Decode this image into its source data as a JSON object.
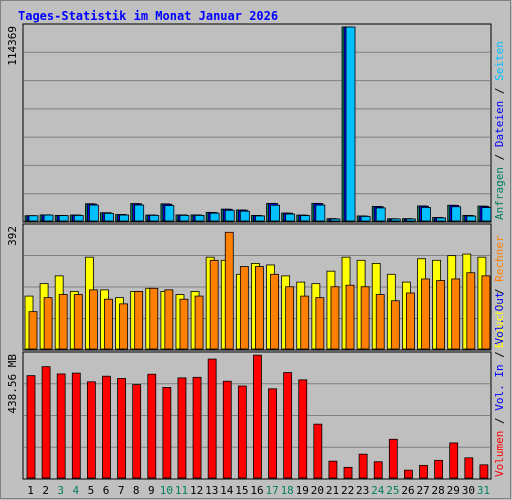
{
  "title": "Tages-Statistik im Monat Januar 2026",
  "colors": {
    "background": "#c0c0c0",
    "plot_bg": "#bfbfbf",
    "grid": "#808080",
    "title": "#0000ff",
    "anfragen": "#007f5f",
    "dateien": "#0000ff",
    "seiten": "#00c0ff",
    "besuche": "#ffff00",
    "rechner": "#ff8000",
    "volumen": "#ff0000",
    "weekday_label": "#000000",
    "weekend_label": "#007f5f",
    "separator": "#000000"
  },
  "chart_data": [
    {
      "type": "bar",
      "panel": "requests",
      "ymax_label": "114369",
      "ylim": [
        0,
        114369
      ],
      "grid": true,
      "categories": [
        "1",
        "2",
        "3",
        "4",
        "5",
        "6",
        "7",
        "8",
        "9",
        "10",
        "11",
        "12",
        "13",
        "14",
        "15",
        "16",
        "17",
        "18",
        "19",
        "20",
        "21",
        "22",
        "23",
        "24",
        "25",
        "26",
        "27",
        "28",
        "29",
        "30",
        "31"
      ],
      "weekend": [
        3,
        4,
        10,
        11,
        17,
        18,
        24,
        25,
        31
      ],
      "legend": [
        {
          "label": "Anfragen",
          "color_key": "anfragen"
        },
        {
          "label": "Dateien",
          "color_key": "dateien"
        },
        {
          "label": "Seiten",
          "color_key": "seiten"
        }
      ],
      "series": [
        {
          "name": "Anfragen",
          "values": [
            3100,
            3600,
            3300,
            3500,
            10200,
            4900,
            3800,
            10300,
            3500,
            10100,
            3600,
            3600,
            5100,
            7000,
            6500,
            3300,
            10400,
            4700,
            3500,
            10400,
            1400,
            114369,
            3000,
            8600,
            1300,
            1400,
            8900,
            2100,
            9300,
            3300,
            8800
          ]
        },
        {
          "name": "Dateien",
          "values": [
            3100,
            3600,
            3300,
            3500,
            10000,
            4800,
            3800,
            10100,
            3500,
            9900,
            3600,
            3500,
            5000,
            6900,
            6400,
            3200,
            10300,
            4600,
            3400,
            10300,
            1300,
            114369,
            2900,
            8400,
            1300,
            1300,
            8700,
            2000,
            9200,
            3200,
            8600
          ]
        },
        {
          "name": "Seiten",
          "values": [
            3100,
            3500,
            3200,
            3300,
            9400,
            4500,
            3500,
            9400,
            3300,
            9100,
            3300,
            3300,
            4600,
            6300,
            5800,
            3000,
            9300,
            4100,
            3200,
            9400,
            1200,
            114369,
            2700,
            7700,
            1200,
            1200,
            8000,
            1800,
            8400,
            2900,
            7900
          ]
        }
      ]
    },
    {
      "type": "bar",
      "panel": "visits",
      "ymax_label": "392",
      "ylim": [
        0,
        392
      ],
      "grid": true,
      "categories": [
        "1",
        "2",
        "3",
        "4",
        "5",
        "6",
        "7",
        "8",
        "9",
        "10",
        "11",
        "12",
        "13",
        "14",
        "15",
        "16",
        "17",
        "18",
        "19",
        "20",
        "21",
        "22",
        "23",
        "24",
        "25",
        "26",
        "27",
        "28",
        "29",
        "30",
        "31"
      ],
      "legend": [
        {
          "label": "Besuche",
          "color_key": "besuche"
        },
        {
          "label": "Rechner",
          "color_key": "rechner"
        }
      ],
      "series": [
        {
          "name": "Besuche",
          "values": [
            170,
            210,
            235,
            185,
            295,
            190,
            165,
            185,
            195,
            185,
            175,
            185,
            295,
            285,
            240,
            275,
            270,
            235,
            215,
            210,
            250,
            295,
            285,
            275,
            240,
            215,
            290,
            285,
            300,
            305,
            295
          ]
        },
        {
          "name": "Rechner",
          "values": [
            120,
            165,
            175,
            175,
            190,
            160,
            145,
            185,
            195,
            190,
            160,
            170,
            285,
            375,
            265,
            265,
            240,
            200,
            170,
            165,
            200,
            205,
            200,
            175,
            155,
            180,
            225,
            220,
            225,
            245,
            235
          ]
        }
      ]
    },
    {
      "type": "bar",
      "panel": "volume",
      "ymax_label": "438.56 MB",
      "ylim": [
        0,
        438.56
      ],
      "unit": "MB",
      "grid": true,
      "categories": [
        "1",
        "2",
        "3",
        "4",
        "5",
        "6",
        "7",
        "8",
        "9",
        "10",
        "11",
        "12",
        "13",
        "14",
        "15",
        "16",
        "17",
        "18",
        "19",
        "20",
        "21",
        "22",
        "23",
        "24",
        "25",
        "26",
        "27",
        "28",
        "29",
        "30",
        "31"
      ],
      "legend": [
        {
          "label": "Volumen",
          "color_key": "volumen"
        },
        {
          "label": "Vol. In",
          "color_key": "dateien"
        },
        {
          "label": "Vol. Out",
          "color_key": "dateien"
        }
      ],
      "series": [
        {
          "name": "Volumen",
          "values": [
            365,
            397,
            371,
            374,
            343,
            363,
            355,
            333,
            370,
            323,
            357,
            359,
            424,
            345,
            328,
            438,
            318,
            376,
            350,
            192,
            60,
            38,
            85,
            58,
            138,
            28,
            45,
            63,
            125,
            72,
            47
          ]
        }
      ]
    }
  ]
}
